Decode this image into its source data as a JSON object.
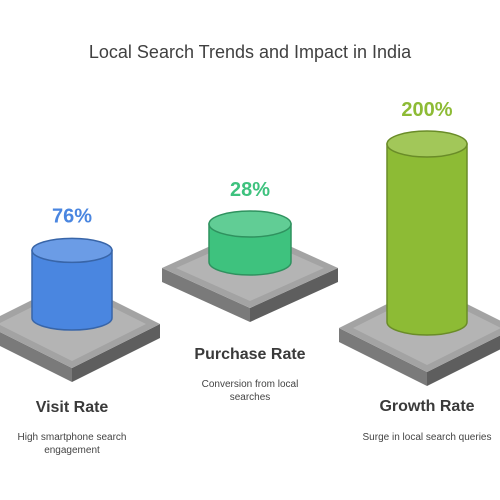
{
  "chart_data": {
    "type": "bar",
    "title": "Local Search Trends and Impact in India",
    "categories": [
      "Visit Rate",
      "Purchase Rate",
      "Growth Rate"
    ],
    "values": [
      76,
      28,
      200
    ],
    "value_labels": [
      "76%",
      "28%",
      "200%"
    ],
    "descriptions": [
      [
        "High smartphone search",
        "engagement"
      ],
      [
        "Conversion from local",
        "searches"
      ],
      [
        "Surge in local search queries"
      ]
    ],
    "colors": [
      "#4A86E0",
      "#3EC27E",
      "#8DBB35"
    ],
    "ylim": [
      0,
      200
    ]
  }
}
